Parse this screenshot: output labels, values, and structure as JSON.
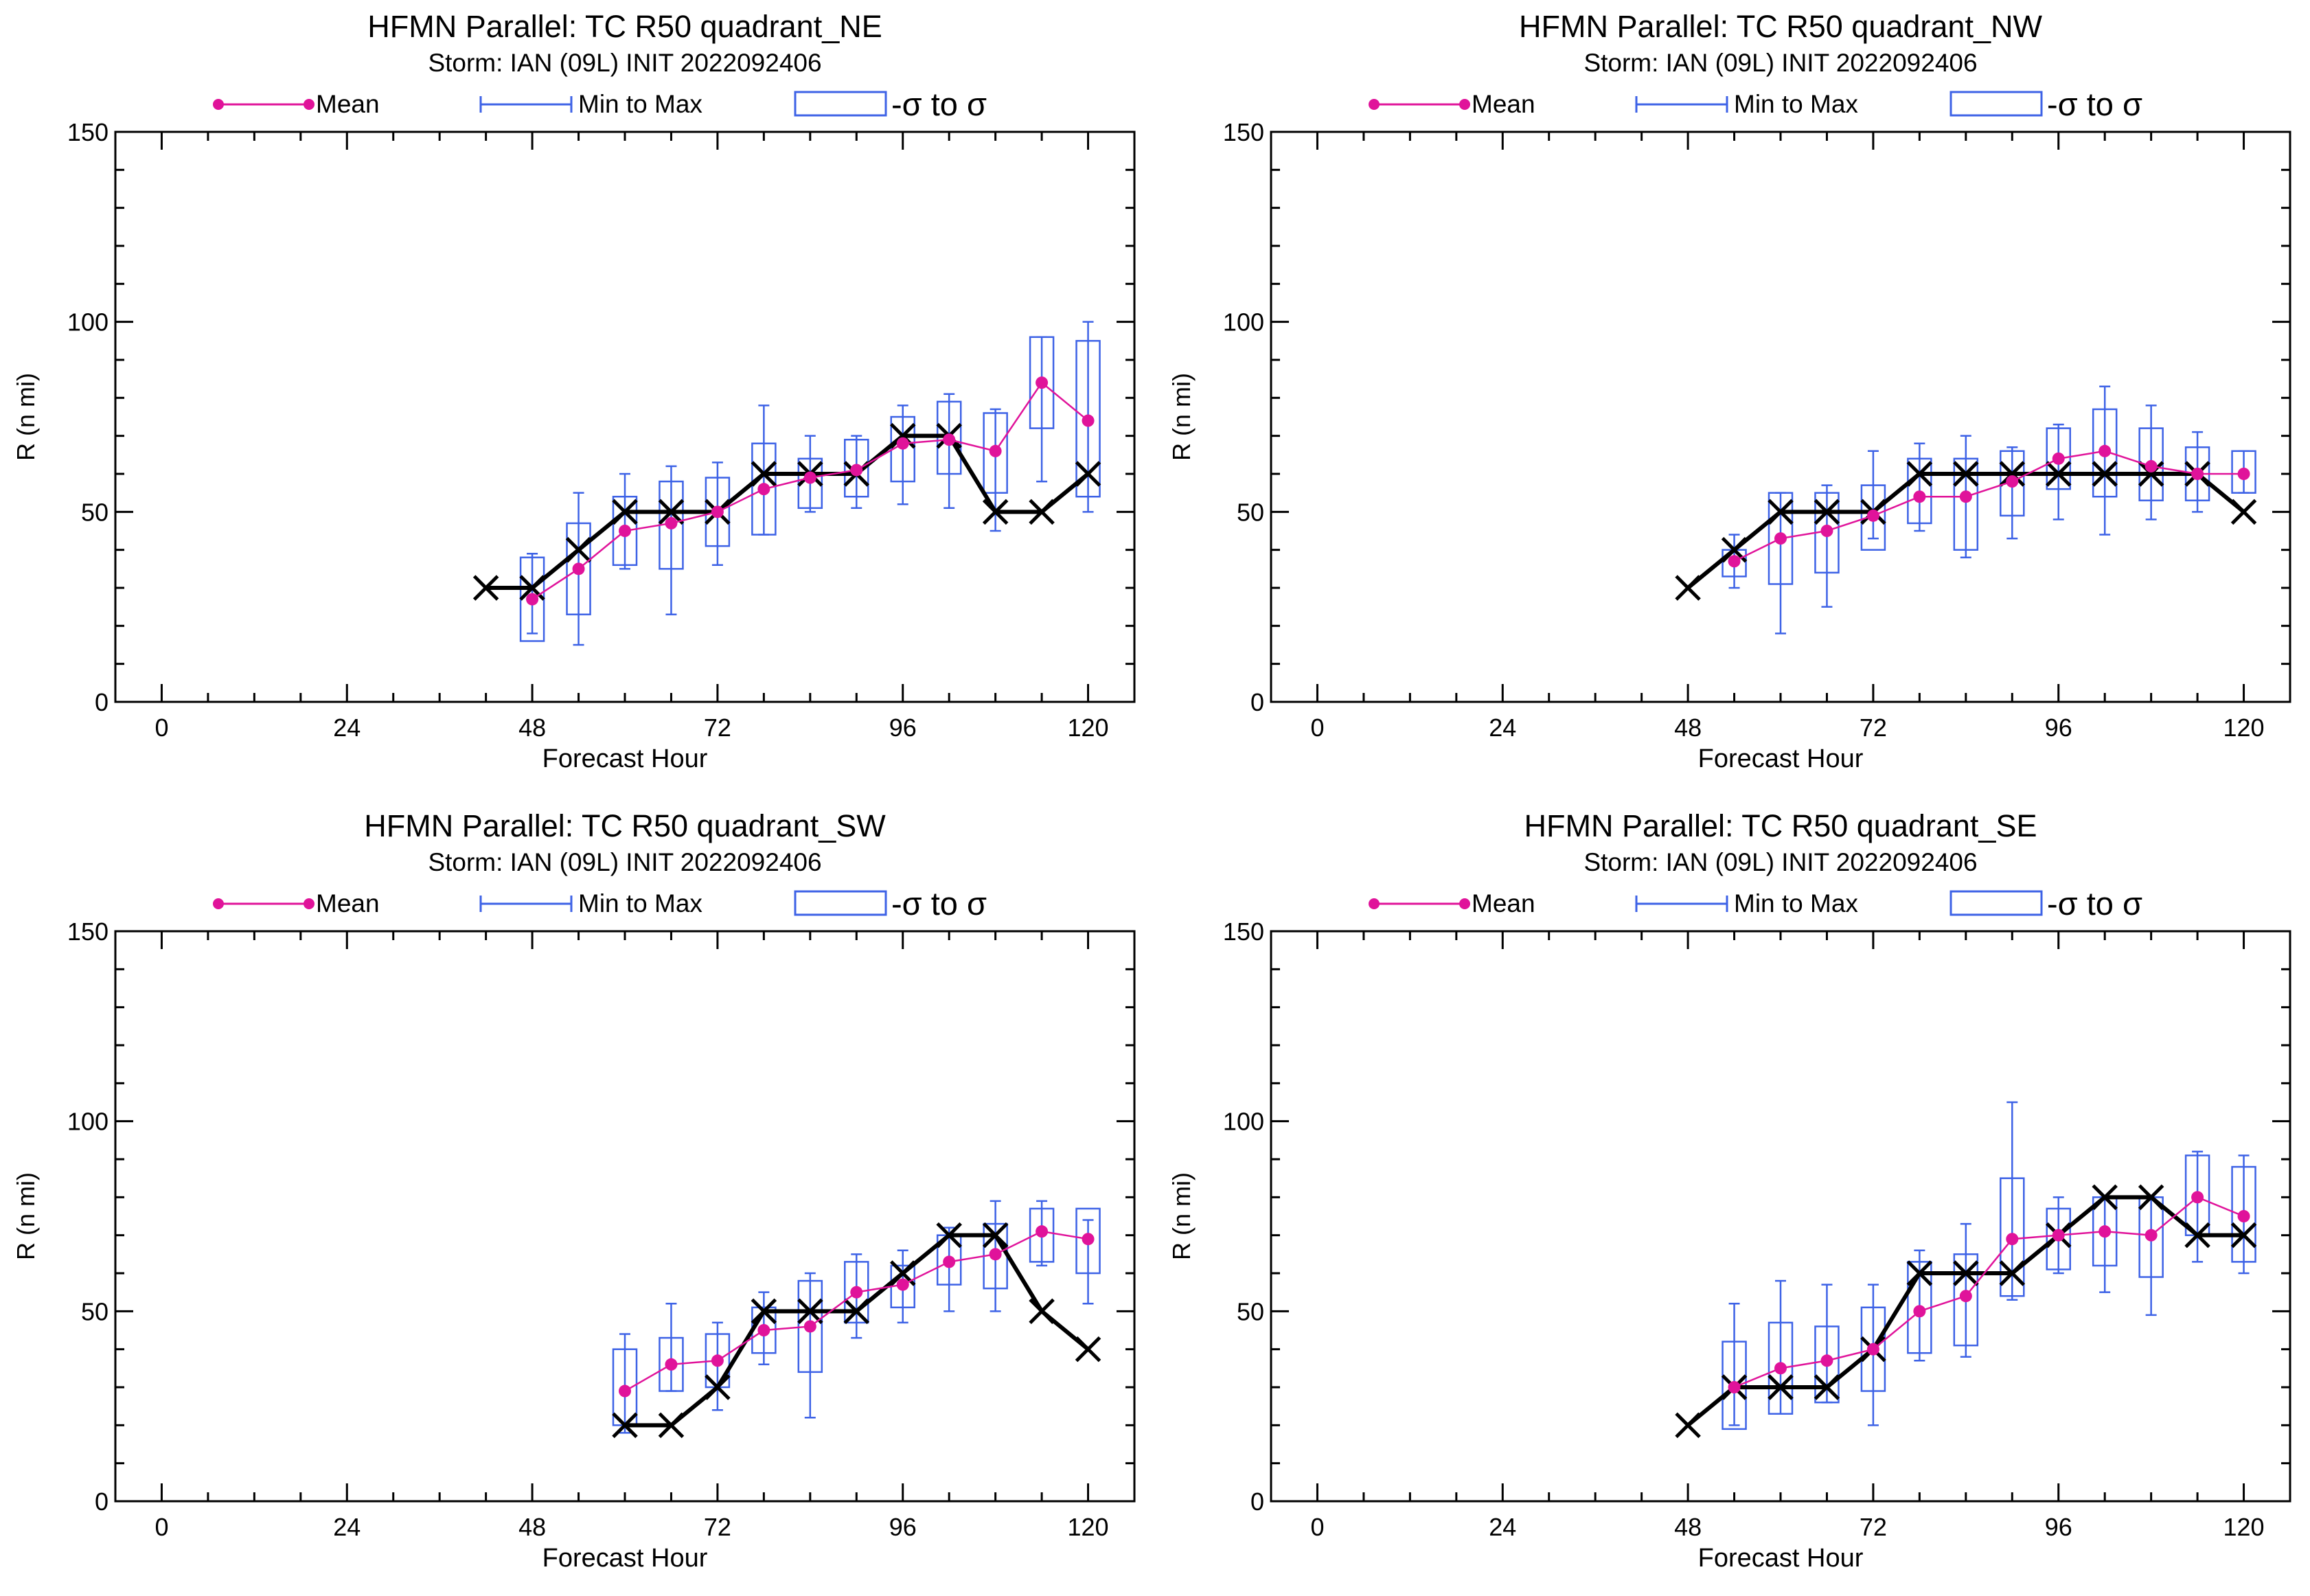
{
  "legend": {
    "mean": "Mean",
    "minmax": "Min to Max",
    "sigma": "-σ to σ"
  },
  "colors": {
    "mean": "#e0139a",
    "minmax": "#3d62e6",
    "observed": "#000000"
  },
  "chart_data": [
    {
      "type": "box",
      "title": "HFMN Parallel: TC  R50 quadrant_NE",
      "subtitle": "Storm: IAN (09L) INIT 2022092406",
      "xlabel": "Forecast Hour",
      "ylabel": "R (n mi)",
      "xlim": [
        -6,
        126
      ],
      "ylim": [
        0,
        150
      ],
      "xticks": [
        0,
        24,
        48,
        72,
        96,
        120
      ],
      "yticks": [
        0,
        50,
        100,
        150
      ],
      "x": [
        48,
        54,
        60,
        66,
        72,
        78,
        84,
        90,
        96,
        102,
        108,
        114,
        120
      ],
      "mean": [
        27,
        35,
        45,
        47,
        50,
        56,
        59,
        61,
        68,
        69,
        66,
        84,
        74
      ],
      "min": [
        18,
        15,
        35,
        23,
        36,
        44,
        50,
        51,
        52,
        51,
        45,
        58,
        50
      ],
      "max": [
        39,
        55,
        60,
        62,
        63,
        78,
        70,
        70,
        78,
        81,
        77,
        96,
        100
      ],
      "sigma_low": [
        16,
        23,
        36,
        35,
        41,
        44,
        51,
        54,
        58,
        60,
        55,
        72,
        54
      ],
      "sigma_high": [
        38,
        47,
        54,
        58,
        59,
        68,
        64,
        69,
        75,
        79,
        76,
        96,
        95
      ],
      "observed": {
        "x": [
          42,
          48,
          54,
          60,
          66,
          72,
          78,
          84,
          90,
          96,
          102,
          108,
          114,
          120
        ],
        "y": [
          30,
          30,
          40,
          50,
          50,
          50,
          60,
          60,
          60,
          70,
          70,
          50,
          50,
          60
        ]
      }
    },
    {
      "type": "box",
      "title": "HFMN Parallel: TC  R50 quadrant_NW",
      "subtitle": "Storm: IAN (09L) INIT 2022092406",
      "xlabel": "Forecast Hour",
      "ylabel": "R (n mi)",
      "xlim": [
        -6,
        126
      ],
      "ylim": [
        0,
        150
      ],
      "xticks": [
        0,
        24,
        48,
        72,
        96,
        120
      ],
      "yticks": [
        0,
        50,
        100,
        150
      ],
      "x": [
        54,
        60,
        66,
        72,
        78,
        84,
        90,
        96,
        102,
        108,
        114,
        120
      ],
      "mean": [
        37,
        43,
        45,
        49,
        54,
        54,
        58,
        64,
        66,
        62,
        60,
        60
      ],
      "min": [
        30,
        18,
        25,
        43,
        45,
        38,
        43,
        48,
        44,
        48,
        50,
        55
      ],
      "max": [
        44,
        55,
        57,
        66,
        68,
        70,
        67,
        73,
        83,
        78,
        71,
        66
      ],
      "sigma_low": [
        33,
        31,
        34,
        40,
        47,
        40,
        49,
        56,
        54,
        53,
        53,
        55
      ],
      "sigma_high": [
        40,
        55,
        55,
        57,
        64,
        64,
        66,
        72,
        77,
        72,
        67,
        66
      ],
      "observed": {
        "x": [
          48,
          54,
          60,
          66,
          72,
          78,
          84,
          90,
          96,
          102,
          108,
          114,
          120
        ],
        "y": [
          30,
          40,
          50,
          50,
          50,
          60,
          60,
          60,
          60,
          60,
          60,
          60,
          50
        ]
      }
    },
    {
      "type": "box",
      "title": "HFMN Parallel: TC  R50 quadrant_SW",
      "subtitle": "Storm: IAN (09L) INIT 2022092406",
      "xlabel": "Forecast Hour",
      "ylabel": "R (n mi)",
      "xlim": [
        -6,
        126
      ],
      "ylim": [
        0,
        150
      ],
      "xticks": [
        0,
        24,
        48,
        72,
        96,
        120
      ],
      "yticks": [
        0,
        50,
        100,
        150
      ],
      "x": [
        60,
        66,
        72,
        78,
        84,
        90,
        96,
        102,
        108,
        114,
        120
      ],
      "mean": [
        29,
        36,
        37,
        45,
        46,
        55,
        57,
        63,
        65,
        71,
        69
      ],
      "min": [
        18,
        29,
        24,
        36,
        22,
        43,
        47,
        50,
        50,
        62,
        52
      ],
      "max": [
        44,
        52,
        47,
        55,
        60,
        65,
        66,
        72,
        79,
        79,
        74
      ],
      "sigma_low": [
        20,
        29,
        30,
        39,
        34,
        47,
        51,
        57,
        56,
        63,
        60
      ],
      "sigma_high": [
        40,
        43,
        44,
        51,
        58,
        63,
        62,
        70,
        73,
        77,
        77
      ],
      "observed": {
        "x": [
          60,
          66,
          72,
          78,
          84,
          90,
          96,
          102,
          108,
          114,
          120
        ],
        "y": [
          20,
          20,
          30,
          50,
          50,
          50,
          60,
          70,
          70,
          50,
          40
        ]
      }
    },
    {
      "type": "box",
      "title": "HFMN Parallel: TC  R50 quadrant_SE",
      "subtitle": "Storm: IAN (09L) INIT 2022092406",
      "xlabel": "Forecast Hour",
      "ylabel": "R (n mi)",
      "xlim": [
        -6,
        126
      ],
      "ylim": [
        0,
        150
      ],
      "xticks": [
        0,
        24,
        48,
        72,
        96,
        120
      ],
      "yticks": [
        0,
        50,
        100,
        150
      ],
      "x": [
        54,
        60,
        66,
        72,
        78,
        84,
        90,
        96,
        102,
        108,
        114,
        120
      ],
      "mean": [
        30,
        35,
        37,
        40,
        50,
        54,
        69,
        70,
        71,
        70,
        80,
        75
      ],
      "min": [
        20,
        23,
        26,
        20,
        37,
        38,
        53,
        60,
        55,
        49,
        63,
        60
      ],
      "max": [
        52,
        58,
        57,
        57,
        66,
        73,
        105,
        80,
        80,
        80,
        92,
        91
      ],
      "sigma_low": [
        19,
        23,
        26,
        29,
        39,
        41,
        54,
        61,
        62,
        59,
        70,
        63
      ],
      "sigma_high": [
        42,
        47,
        46,
        51,
        63,
        65,
        85,
        77,
        80,
        80,
        91,
        88
      ],
      "observed": {
        "x": [
          48,
          54,
          60,
          66,
          72,
          78,
          84,
          90,
          96,
          102,
          108,
          114,
          120
        ],
        "y": [
          20,
          30,
          30,
          30,
          40,
          60,
          60,
          60,
          70,
          80,
          80,
          70,
          70
        ]
      }
    }
  ]
}
